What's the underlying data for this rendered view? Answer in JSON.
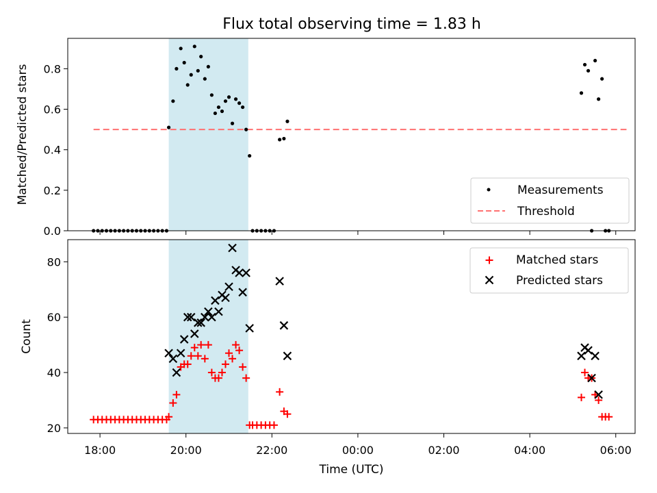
{
  "chart_data": {
    "type": "scatter",
    "title": "Flux total observing time = 1.83 h",
    "xlabel": "Time (UTC)",
    "x_unit": "hours since 18:00 UTC",
    "xlim_hours": [
      -0.75,
      12.45
    ],
    "x_ticks": [
      {
        "h": 0,
        "label": "18:00"
      },
      {
        "h": 2,
        "label": "20:00"
      },
      {
        "h": 4,
        "label": "22:00"
      },
      {
        "h": 6,
        "label": "00:00"
      },
      {
        "h": 8,
        "label": "02:00"
      },
      {
        "h": 10,
        "label": "04:00"
      },
      {
        "h": 12,
        "label": "06:00"
      }
    ],
    "shaded_span_hours": [
      1.6,
      3.45
    ],
    "shade_color": "#add8e6",
    "top": {
      "ylabel": "Matched/Predicted stars",
      "ylim": [
        0,
        0.95
      ],
      "y_ticks": [
        "0.0",
        "0.2",
        "0.4",
        "0.6",
        "0.8"
      ],
      "threshold": {
        "name": "Threshold",
        "y": 0.5,
        "x_range_hours": [
          -0.15,
          12.25
        ],
        "color": "#ff7070"
      },
      "legend": {
        "placement": "lower right",
        "entries": [
          "Measurements",
          "Threshold"
        ]
      },
      "measurements": {
        "name": "Measurements",
        "color": "#000000",
        "points": [
          [
            -0.15,
            0
          ],
          [
            -0.05,
            0
          ],
          [
            0.05,
            0
          ],
          [
            0.15,
            0
          ],
          [
            0.25,
            0
          ],
          [
            0.35,
            0
          ],
          [
            0.45,
            0
          ],
          [
            0.55,
            0
          ],
          [
            0.65,
            0
          ],
          [
            0.75,
            0
          ],
          [
            0.85,
            0
          ],
          [
            0.95,
            0
          ],
          [
            1.05,
            0
          ],
          [
            1.15,
            0
          ],
          [
            1.25,
            0
          ],
          [
            1.35,
            0
          ],
          [
            1.45,
            0
          ],
          [
            1.55,
            0
          ],
          [
            1.6,
            0.51
          ],
          [
            1.7,
            0.64
          ],
          [
            1.78,
            0.8
          ],
          [
            1.88,
            0.9
          ],
          [
            1.96,
            0.83
          ],
          [
            2.04,
            0.72
          ],
          [
            2.12,
            0.77
          ],
          [
            2.2,
            0.91
          ],
          [
            2.28,
            0.79
          ],
          [
            2.35,
            0.86
          ],
          [
            2.44,
            0.75
          ],
          [
            2.52,
            0.81
          ],
          [
            2.6,
            0.67
          ],
          [
            2.68,
            0.58
          ],
          [
            2.76,
            0.61
          ],
          [
            2.84,
            0.59
          ],
          [
            2.92,
            0.64
          ],
          [
            3.0,
            0.66
          ],
          [
            3.08,
            0.53
          ],
          [
            3.16,
            0.65
          ],
          [
            3.24,
            0.63
          ],
          [
            3.32,
            0.61
          ],
          [
            3.4,
            0.5
          ],
          [
            3.48,
            0.37
          ],
          [
            3.55,
            0
          ],
          [
            3.65,
            0
          ],
          [
            3.75,
            0
          ],
          [
            3.85,
            0
          ],
          [
            3.95,
            0
          ],
          [
            4.05,
            0
          ],
          [
            4.18,
            0.45
          ],
          [
            4.28,
            0.455
          ],
          [
            4.36,
            0.54
          ],
          [
            11.2,
            0.68
          ],
          [
            11.28,
            0.82
          ],
          [
            11.36,
            0.79
          ],
          [
            11.44,
            0
          ],
          [
            11.52,
            0.84
          ],
          [
            11.6,
            0.65
          ],
          [
            11.68,
            0.75
          ],
          [
            11.76,
            0
          ],
          [
            11.84,
            0
          ]
        ]
      }
    },
    "bottom": {
      "ylabel": "Count",
      "ylim": [
        18,
        88
      ],
      "y_ticks": [
        "20",
        "40",
        "60",
        "80"
      ],
      "legend": {
        "placement": "upper right",
        "entries": [
          "Matched stars",
          "Predicted stars"
        ]
      },
      "matched": {
        "name": "Matched stars",
        "color": "#ff0000",
        "points": [
          [
            -0.15,
            23
          ],
          [
            -0.05,
            23
          ],
          [
            0.05,
            23
          ],
          [
            0.15,
            23
          ],
          [
            0.25,
            23
          ],
          [
            0.35,
            23
          ],
          [
            0.45,
            23
          ],
          [
            0.55,
            23
          ],
          [
            0.65,
            23
          ],
          [
            0.75,
            23
          ],
          [
            0.85,
            23
          ],
          [
            0.95,
            23
          ],
          [
            1.05,
            23
          ],
          [
            1.15,
            23
          ],
          [
            1.25,
            23
          ],
          [
            1.35,
            23
          ],
          [
            1.45,
            23
          ],
          [
            1.55,
            23
          ],
          [
            1.6,
            24
          ],
          [
            1.7,
            29
          ],
          [
            1.78,
            32
          ],
          [
            1.88,
            42
          ],
          [
            1.96,
            43
          ],
          [
            2.04,
            43
          ],
          [
            2.12,
            46
          ],
          [
            2.2,
            49
          ],
          [
            2.28,
            46
          ],
          [
            2.35,
            50
          ],
          [
            2.44,
            45
          ],
          [
            2.52,
            50
          ],
          [
            2.6,
            40
          ],
          [
            2.68,
            38
          ],
          [
            2.76,
            38
          ],
          [
            2.84,
            40
          ],
          [
            2.92,
            43
          ],
          [
            3.0,
            47
          ],
          [
            3.08,
            45
          ],
          [
            3.16,
            50
          ],
          [
            3.24,
            48
          ],
          [
            3.32,
            42
          ],
          [
            3.4,
            38
          ],
          [
            3.48,
            21
          ],
          [
            3.55,
            21
          ],
          [
            3.65,
            21
          ],
          [
            3.75,
            21
          ],
          [
            3.85,
            21
          ],
          [
            3.95,
            21
          ],
          [
            4.05,
            21
          ],
          [
            4.18,
            33
          ],
          [
            4.28,
            26
          ],
          [
            4.36,
            25
          ],
          [
            11.2,
            31
          ],
          [
            11.28,
            40
          ],
          [
            11.36,
            38
          ],
          [
            11.44,
            38
          ],
          [
            11.52,
            32
          ],
          [
            11.6,
            30
          ],
          [
            11.68,
            24
          ],
          [
            11.76,
            24
          ],
          [
            11.84,
            24
          ]
        ]
      },
      "predicted": {
        "name": "Predicted stars",
        "color": "#000000",
        "points": [
          [
            1.6,
            47
          ],
          [
            1.7,
            45
          ],
          [
            1.78,
            40
          ],
          [
            1.88,
            47
          ],
          [
            1.96,
            52
          ],
          [
            2.04,
            60
          ],
          [
            2.12,
            60
          ],
          [
            2.2,
            54
          ],
          [
            2.28,
            58
          ],
          [
            2.35,
            58
          ],
          [
            2.44,
            60
          ],
          [
            2.52,
            62
          ],
          [
            2.6,
            60
          ],
          [
            2.68,
            66
          ],
          [
            2.76,
            62
          ],
          [
            2.84,
            68
          ],
          [
            2.92,
            67
          ],
          [
            3.0,
            71
          ],
          [
            3.08,
            85
          ],
          [
            3.16,
            77
          ],
          [
            3.24,
            76
          ],
          [
            3.32,
            69
          ],
          [
            3.4,
            76
          ],
          [
            3.48,
            56
          ],
          [
            4.18,
            73
          ],
          [
            4.28,
            57
          ],
          [
            4.36,
            46
          ],
          [
            11.2,
            46
          ],
          [
            11.28,
            49
          ],
          [
            11.36,
            48
          ],
          [
            11.44,
            38
          ],
          [
            11.52,
            46
          ],
          [
            11.6,
            32
          ]
        ]
      }
    }
  }
}
